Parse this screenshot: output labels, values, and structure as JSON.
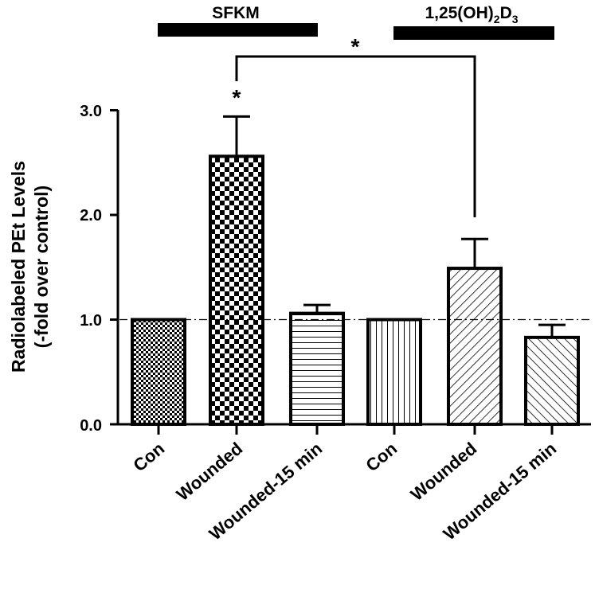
{
  "chart_data": {
    "type": "bar",
    "ylabel_line1": "Radiolabeled PEt Levels",
    "ylabel_line2": "(-fold over control)",
    "ylim": [
      0,
      3.0
    ],
    "yticks": [
      "0.0",
      "1.0",
      "2.0",
      "3.0"
    ],
    "reference_line": 1.0,
    "categories": [
      "Con",
      "Wounded",
      "Wounded-15 min",
      "Con",
      "Wounded",
      "Wounded-15 min"
    ],
    "values": [
      1.0,
      2.56,
      1.06,
      1.0,
      1.49,
      0.83
    ],
    "errors": [
      0.0,
      0.38,
      0.08,
      0.0,
      0.28,
      0.12
    ],
    "patterns": [
      "fine-check",
      "checker",
      "horizontal",
      "vertical",
      "diagonal-up",
      "diagonal-down"
    ],
    "groups": [
      {
        "label_main": "SFKM",
        "label_sub": "",
        "label_tail": "",
        "span": [
          0,
          2
        ]
      },
      {
        "label_main": "1,25(OH)",
        "label_sub": "2",
        "label_tail": "D",
        "label_sub2": "3",
        "span": [
          3,
          5
        ]
      }
    ],
    "annotations": {
      "star_bar": "*",
      "star_bracket": "*"
    }
  }
}
